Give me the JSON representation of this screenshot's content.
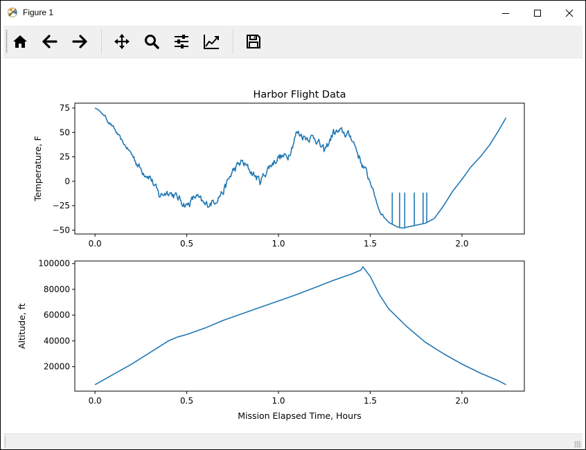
{
  "window": {
    "title": "Figure 1",
    "controls": {
      "minimize": "minimize-icon",
      "maximize": "maximize-icon",
      "close": "close-icon"
    }
  },
  "toolbar": {
    "buttons": [
      {
        "name": "home",
        "icon": "home-icon"
      },
      {
        "name": "back",
        "icon": "arrow-left-icon"
      },
      {
        "name": "forward",
        "icon": "arrow-right-icon"
      },
      {
        "name": "pan",
        "icon": "move-icon"
      },
      {
        "name": "zoom",
        "icon": "magnifier-icon"
      },
      {
        "name": "configure-subplots",
        "icon": "sliders-icon"
      },
      {
        "name": "edit-axis",
        "icon": "line-chart-icon"
      },
      {
        "name": "save",
        "icon": "floppy-icon"
      }
    ]
  },
  "chart_data": [
    {
      "type": "line",
      "title": "Harbor Flight Data",
      "xlabel": "",
      "ylabel": "Temperature, F",
      "xlim": [
        -0.11,
        2.34
      ],
      "ylim": [
        -54,
        80
      ],
      "xticks": [
        "0.0",
        "0.5",
        "1.0",
        "1.5",
        "2.0"
      ],
      "yticks": [
        "75",
        "50",
        "25",
        "0",
        "−25",
        "−50"
      ],
      "grid": false,
      "color": "#1f77b4",
      "series": [
        {
          "x": [
            0,
            0.02,
            0.05,
            0.1,
            0.15,
            0.2,
            0.25,
            0.3,
            0.35,
            0.4,
            0.45,
            0.5,
            0.55,
            0.6,
            0.65,
            0.7,
            0.75,
            0.8,
            0.85,
            0.9,
            0.95,
            1.0,
            1.05,
            1.1,
            1.15,
            1.2,
            1.25,
            1.3,
            1.35,
            1.4,
            1.45,
            1.5,
            1.55,
            1.6,
            1.65,
            1.68,
            1.7,
            1.75,
            1.8,
            1.85,
            1.9,
            1.95,
            2.0,
            2.05,
            2.1,
            2.15,
            2.2,
            2.24
          ],
          "y": [
            75,
            73,
            67,
            55,
            40,
            28,
            12,
            5,
            -15,
            -10,
            -17,
            -25,
            -15,
            -25,
            -20,
            -10,
            10,
            20,
            10,
            0,
            15,
            25,
            25,
            50,
            45,
            45,
            30,
            50,
            50,
            45,
            20,
            0,
            -30,
            -42,
            -47,
            -48,
            -47,
            -45,
            -43,
            -38,
            -25,
            -10,
            2,
            15,
            25,
            37,
            52,
            65
          ]
        }
      ],
      "annotations": "spikes to about -12 near x 1.62, 1.66, 1.69, 1.74, 1.79, 1.81"
    },
    {
      "type": "line",
      "title": "",
      "xlabel": "Mission Elapsed Time, Hours",
      "ylabel": "Altitude, ft",
      "xlim": [
        -0.11,
        2.34
      ],
      "ylim": [
        1000,
        102000
      ],
      "xticks": [
        "0.0",
        "0.5",
        "1.0",
        "1.5",
        "2.0"
      ],
      "yticks": [
        "100000",
        "80000",
        "60000",
        "40000",
        "20000"
      ],
      "grid": false,
      "color": "#1f77b4",
      "series": [
        {
          "x": [
            0,
            0.1,
            0.2,
            0.3,
            0.4,
            0.45,
            0.5,
            0.6,
            0.7,
            0.8,
            0.9,
            1.0,
            1.1,
            1.2,
            1.3,
            1.4,
            1.45,
            1.46,
            1.5,
            1.55,
            1.6,
            1.7,
            1.8,
            1.9,
            2.0,
            2.1,
            2.2,
            2.24
          ],
          "y": [
            6000,
            14000,
            22000,
            31000,
            40000,
            43000,
            45000,
            50000,
            56000,
            61000,
            66000,
            71000,
            76000,
            81500,
            87000,
            92000,
            95000,
            97500,
            90000,
            76000,
            65000,
            51000,
            39000,
            30000,
            22000,
            15000,
            9000,
            6000
          ]
        }
      ]
    }
  ]
}
